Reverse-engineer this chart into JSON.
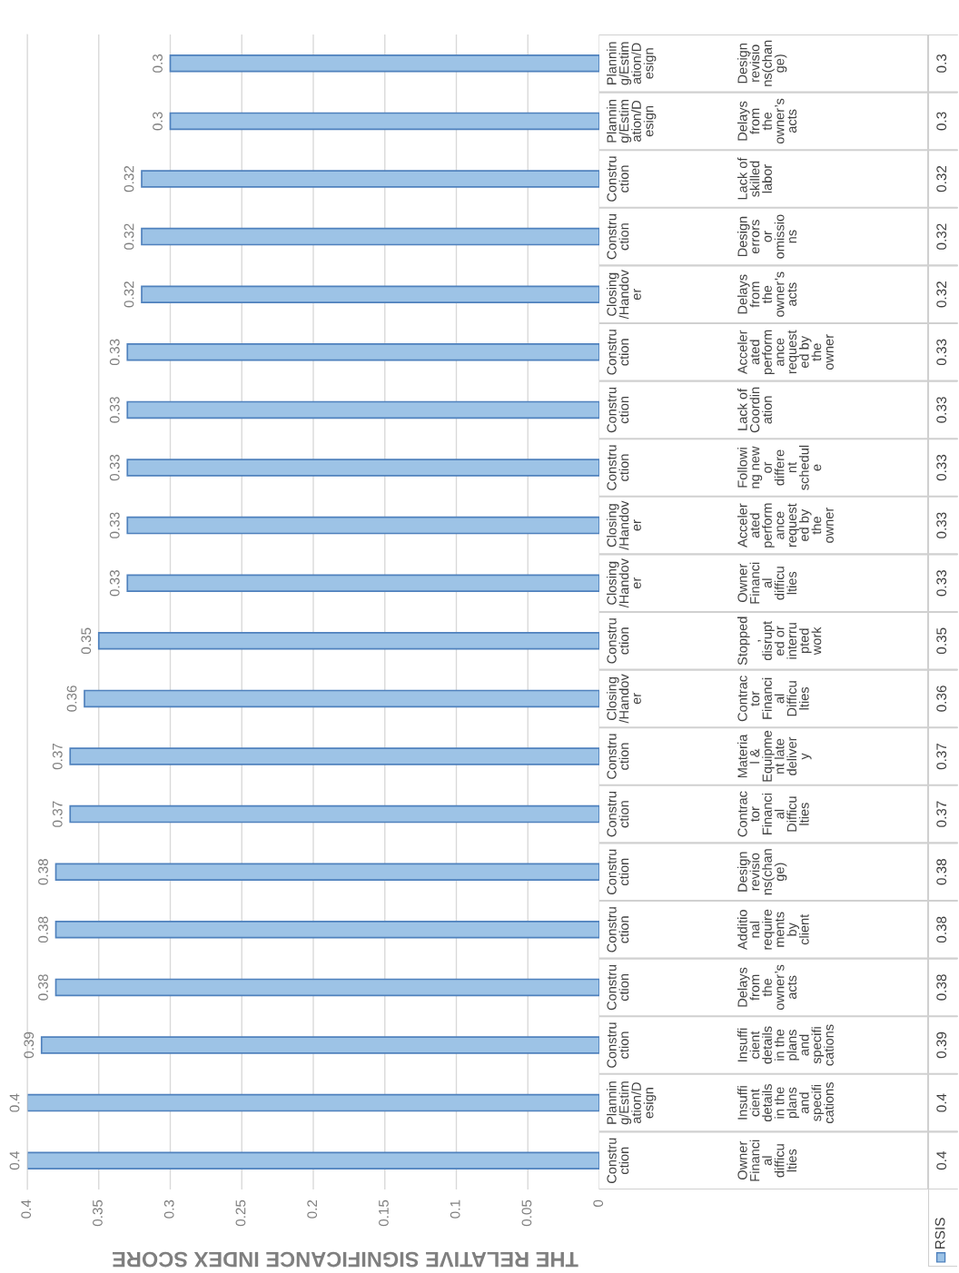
{
  "chart_data": {
    "type": "bar",
    "orientation": "horizontal",
    "xlabel": "THE RELATIVE SIGNIFICANCE INDEX SCORE",
    "categories": [
      "Planning/Estimation/Design\nDesign revisions(change)",
      "Planning/Estimation/Design\nDelays from the owner’s acts",
      "Construction\nLack of skilled labor",
      "Construction\nDesign errors or omissions",
      "Closing/Handover\nDelays from the owner’s acts",
      "Construction\nAccelerated performance requested by the owner",
      "Construction\nLack of Coordination",
      "Construction\nFollowing new or different schedule",
      "Closing/Handover\nAccelerated performance requested by the owner",
      "Closing/Handover\nOwner Financial difficulties",
      "Construction\nStopped, disrupted or interrupted work",
      "Closing/Handover\nContractor Financial Difficulties",
      "Construction\nMaterial & Equipment late delivery",
      "Construction\nContractor Financial Difficulties",
      "Construction\nDesign revisions(change)",
      "Construction\nAdditional requirements by client",
      "Construction\nDelays from the owner’s acts",
      "Construction\nInsufficient details in the plans and specifications",
      "Planning/Estimation/Design\nInsufficient details in the plans and specifications",
      "Construction\nOwner Financial difficulties"
    ],
    "series": [
      {
        "name": "RSIS",
        "color": "#9dc3e6",
        "values": [
          0.3,
          0.3,
          0.32,
          0.32,
          0.32,
          0.33,
          0.33,
          0.33,
          0.33,
          0.33,
          0.35,
          0.36,
          0.37,
          0.37,
          0.38,
          0.38,
          0.38,
          0.39,
          0.4,
          0.4
        ],
        "value_labels": [
          "0.3",
          "0.3",
          "0.32",
          "0.32",
          "0.32",
          "0.33",
          "0.33",
          "0.33",
          "0.33",
          "0.33",
          "0.35",
          "0.36",
          "0.37",
          "0.37",
          "0.38",
          "0.38",
          "0.38",
          "0.39",
          "0.4",
          "0.4"
        ]
      }
    ],
    "xlim": [
      0.4,
      0
    ],
    "xticks": [
      0.4,
      0.35,
      0.3,
      0.25,
      0.2,
      0.15,
      0.1,
      0.05,
      0
    ],
    "annotations": [
      "0.3",
      "0.3",
      "0.32",
      "0.32",
      "0.32",
      "0.33",
      "0.33",
      "0.33",
      "0.33",
      "0.33",
      "0.35",
      "0.36",
      "0.37",
      "0.37",
      "0.38",
      "0.38",
      "0.38",
      "0.39",
      "0.4",
      "0.4"
    ],
    "grid": "x",
    "legend": "bottom right"
  }
}
